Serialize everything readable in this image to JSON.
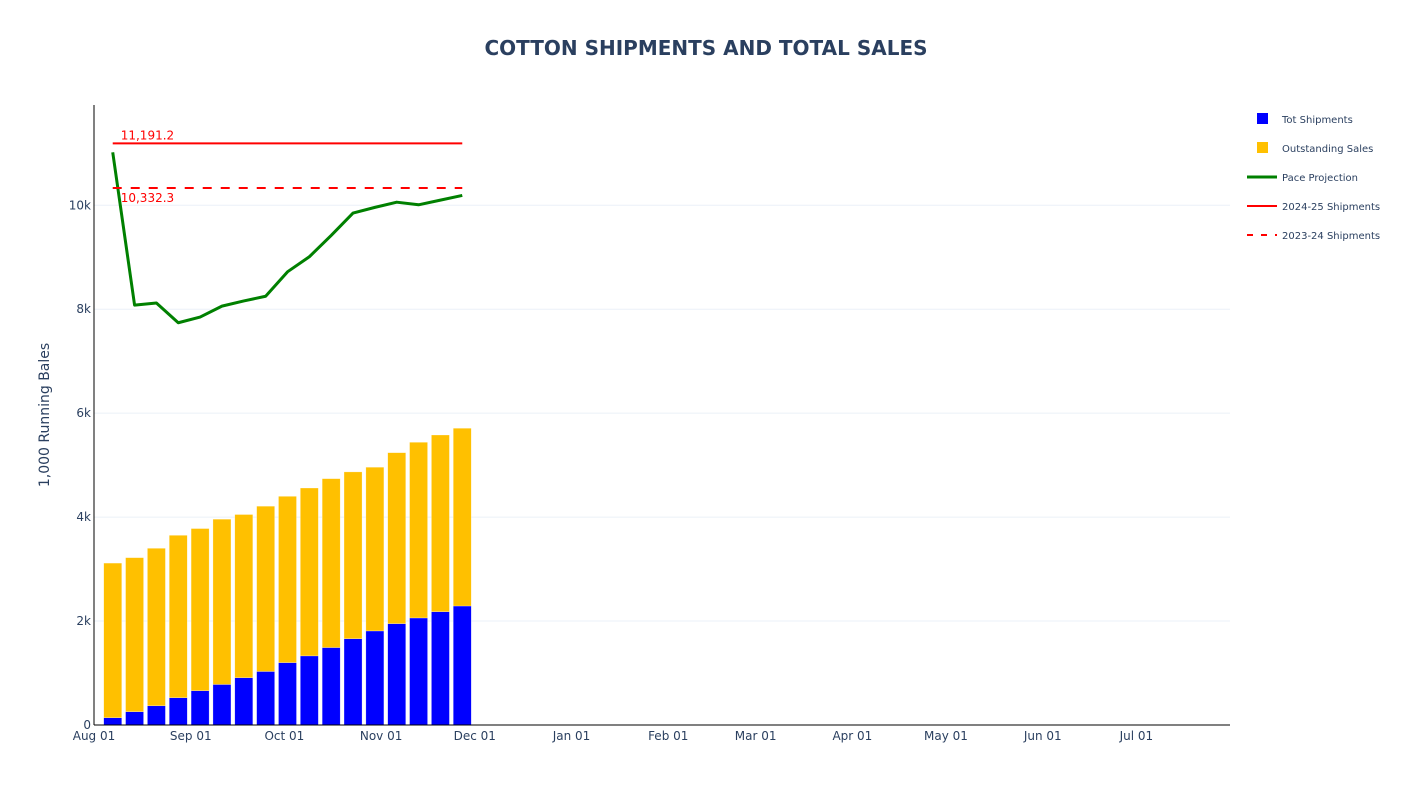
{
  "chart_data": {
    "type": "bar",
    "title": "COTTON SHIPMENTS AND TOTAL SALES",
    "xlabel": "",
    "ylabel": "1,000 Running Bales",
    "x_axis": {
      "type": "date",
      "range_days_from_aug01": [
        0,
        364
      ],
      "tick_labels": [
        "Aug 01",
        "Sep 01",
        "Oct 01",
        "Nov 01",
        "Dec 01",
        "Jan 01",
        "Feb 01",
        "Mar 01",
        "Apr 01",
        "May 01",
        "Jun 01",
        "Jul 01"
      ],
      "tick_days_from_aug01": [
        0,
        31,
        61,
        92,
        122,
        153,
        184,
        212,
        243,
        273,
        304,
        334
      ]
    },
    "y_axis": {
      "range": [
        0,
        11930
      ],
      "tick_values": [
        0,
        2000,
        4000,
        6000,
        8000,
        10000
      ],
      "tick_labels": [
        "0",
        "2k",
        "4k",
        "6k",
        "8k",
        "10k"
      ],
      "grid": true
    },
    "barmode": "stack",
    "x": [
      "Aug 07",
      "Aug 14",
      "Aug 21",
      "Aug 28",
      "Sep 04",
      "Sep 11",
      "Sep 18",
      "Sep 25",
      "Oct 02",
      "Oct 09",
      "Oct 16",
      "Oct 23",
      "Oct 30",
      "Nov 06",
      "Nov 13",
      "Nov 20",
      "Nov 27"
    ],
    "x_days_from_aug01": [
      6,
      13,
      20,
      27,
      34,
      41,
      48,
      55,
      62,
      69,
      76,
      83,
      90,
      97,
      104,
      111,
      118
    ],
    "series": [
      {
        "name": "Tot Shipments",
        "kind": "bar",
        "color": "#0000ff",
        "values": [
          140,
          256,
          370,
          525,
          660,
          780,
          910,
          1030,
          1200,
          1330,
          1490,
          1660,
          1810,
          1950,
          2060,
          2180,
          2290
        ]
      },
      {
        "name": "Outstanding Sales",
        "kind": "bar",
        "color": "#ffc000",
        "values": [
          2975,
          2964,
          3030,
          3125,
          3120,
          3180,
          3140,
          3180,
          3200,
          3230,
          3250,
          3210,
          3150,
          3290,
          3380,
          3400,
          3420
        ]
      },
      {
        "name": "Pace Projection",
        "kind": "line",
        "color": "#008000",
        "dash": "solid",
        "values": [
          11020,
          8080,
          8120,
          7740,
          7850,
          8060,
          8160,
          8250,
          8720,
          9010,
          9420,
          9850,
          9960,
          10060,
          10010,
          10100,
          10190
        ]
      },
      {
        "name": "2024-25 Shipments",
        "kind": "hline",
        "color": "#ff0000",
        "dash": "solid",
        "value": 11191.2,
        "x_span_days_from_aug01": [
          6,
          118
        ]
      },
      {
        "name": "2023-24 Shipments",
        "kind": "hline",
        "color": "#ff0000",
        "dash": "dash",
        "value": 10332.3,
        "x_span_days_from_aug01": [
          6,
          118
        ]
      }
    ],
    "annotations": [
      {
        "text": "11,191.2",
        "value": 11191.2,
        "position": "above-start"
      },
      {
        "text": "10,332.3",
        "value": 10332.3,
        "position": "below-start"
      }
    ],
    "legend": {
      "placement": "top-right",
      "entries": [
        "Tot Shipments",
        "Outstanding Sales",
        "Pace Projection",
        "2024-25 Shipments",
        "2023-24 Shipments"
      ]
    }
  }
}
